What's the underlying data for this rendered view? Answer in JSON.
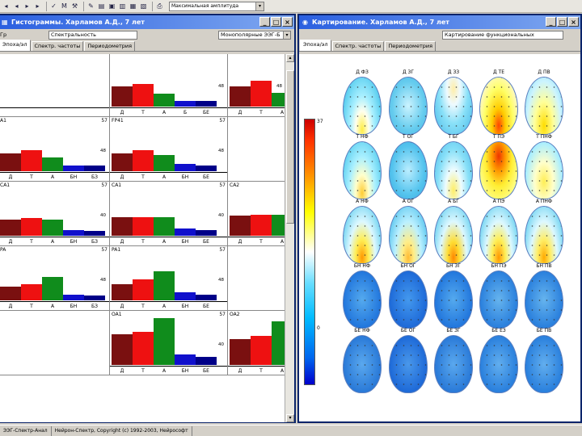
{
  "toolbar": {
    "select_value": "Максимальная амплитуда"
  },
  "left_window": {
    "title": "Гистограммы. Харламов А.Д., 7 лет",
    "sub_col1": "Гр",
    "sub_col2": "Спектральность",
    "sub_col3": "Монополярные ЭЭГ-Б",
    "tabs": [
      "Эпоха/эл",
      "Спектр. частоты",
      "Периодометрия"
    ],
    "cells": [
      {
        "label": "",
        "max": "",
        "mid": "",
        "cats": [
          "",
          "",
          "",
          "",
          ""
        ],
        "values": [
          0,
          0,
          0,
          0,
          0
        ]
      },
      {
        "label": "",
        "max": "",
        "mid": "48",
        "cats": [
          "Д",
          "Т",
          "А",
          "Б",
          "БЕ"
        ],
        "values": [
          17,
          19,
          11,
          5,
          5
        ]
      },
      {
        "label": "",
        "max": "",
        "mid": "48",
        "cats": [
          "Д",
          "Т",
          "А"
        ],
        "values": [
          17,
          22,
          12
        ]
      },
      {
        "label": "A1",
        "max": "57",
        "mid": "48",
        "cats": [
          "Д",
          "Т",
          "А",
          "БН",
          "БЗ"
        ],
        "values": [
          15,
          18,
          12,
          5,
          5
        ]
      },
      {
        "label": "FP41",
        "max": "57",
        "mid": "48",
        "cats": [
          "Д",
          "Т",
          "А",
          "БН",
          "БЕ"
        ],
        "values": [
          15,
          18,
          14,
          6,
          5
        ]
      },
      {
        "label": "",
        "max": "",
        "mid": "",
        "cats": [],
        "values": []
      },
      {
        "label": "CA1",
        "max": "57",
        "mid": "40",
        "cats": [
          "Д",
          "Т",
          "А",
          "БН",
          "БЗ"
        ],
        "values": [
          14,
          15,
          14,
          5,
          4
        ]
      },
      {
        "label": "CA1",
        "max": "57",
        "mid": "40",
        "cats": [
          "Д",
          "Т",
          "А",
          "БН",
          "БЕ"
        ],
        "values": [
          16,
          16,
          16,
          6,
          5
        ]
      },
      {
        "label": "CA2",
        "max": "",
        "mid": "",
        "cats": [
          "Д",
          "Т",
          "А"
        ],
        "values": [
          17,
          18,
          18
        ]
      },
      {
        "label": "PA",
        "max": "57",
        "mid": "48",
        "cats": [
          "Д",
          "Т",
          "А",
          "БН",
          "БЗ"
        ],
        "values": [
          12,
          14,
          20,
          5,
          4
        ]
      },
      {
        "label": "PA1",
        "max": "57",
        "mid": "48",
        "cats": [
          "Д",
          "Т",
          "А",
          "БН",
          "БЕ"
        ],
        "values": [
          14,
          18,
          25,
          7,
          5
        ]
      },
      {
        "label": "",
        "max": "",
        "mid": "",
        "cats": [],
        "values": []
      },
      {
        "label": "",
        "max": "",
        "mid": "",
        "cats": [],
        "values": []
      },
      {
        "label": "OA1",
        "max": "57",
        "mid": "40",
        "cats": [
          "Д",
          "Т",
          "А",
          "БН",
          "БЕ"
        ],
        "values": [
          26,
          28,
          40,
          9,
          7
        ]
      },
      {
        "label": "OA2",
        "max": "",
        "mid": "",
        "cats": [
          "Д",
          "Т",
          "А"
        ],
        "values": [
          22,
          25,
          37
        ]
      }
    ]
  },
  "right_window": {
    "title": "Картирование. Харламов А.Д., 7 лет",
    "sub_drop": "Картирование функциональных",
    "tabs": [
      "Эпоха/эл",
      "Спектр. частоты",
      "Периодометрия"
    ],
    "scale_max": "37",
    "scale_min": "0",
    "rows": [
      [
        "Д ФЗ",
        "Д ЗГ",
        "Д ЗЗ",
        "Д ТЕ",
        "Д ПВ"
      ],
      [
        "Т НФ",
        "Т ОГ",
        "Т БГ",
        "Т ПЭ",
        "Т ПНФ"
      ],
      [
        "А НФ",
        "А ОГ",
        "А БГ",
        "А ПЭ",
        "А ПНФ"
      ],
      [
        "БН НФ",
        "БН ОГ",
        "БН ЗГ",
        "БН ПЭ",
        "БН ПВ"
      ],
      [
        "БЕ НФ",
        "БЕ ОГ",
        "БЕ ЗГ",
        "БЕ ЕЗ",
        "БЕ ПВ"
      ]
    ]
  },
  "status": [
    "ЭЭГ-Спектр-Анал",
    "Нейрон-Спектр, Copyright (c) 1992-2003, Нейрософт"
  ],
  "colors": {
    "delta": "#7a1010",
    "theta": "#ee1111",
    "alpha": "#108c1c",
    "beta1": "#1010cc",
    "beta2": "#000088",
    "window_title": "#2a5fe0"
  }
}
